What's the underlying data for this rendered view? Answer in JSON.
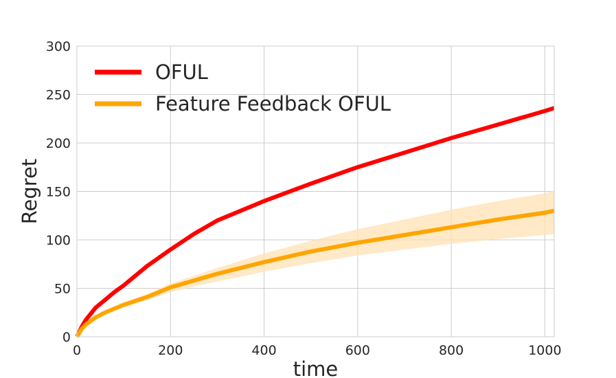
{
  "chart_data": {
    "type": "line",
    "xlabel": "time",
    "ylabel": "Regret",
    "xlim": [
      0,
      1020
    ],
    "ylim": [
      0,
      300
    ],
    "xticks": [
      0,
      200,
      400,
      600,
      800,
      1000
    ],
    "yticks": [
      0,
      50,
      100,
      150,
      200,
      250,
      300
    ],
    "grid": true,
    "legend_position": "top-left",
    "x": [
      0,
      10,
      20,
      40,
      60,
      80,
      100,
      150,
      200,
      250,
      300,
      400,
      500,
      600,
      700,
      800,
      900,
      1000,
      1020
    ],
    "series": [
      {
        "name": "OFUL",
        "color": "#ff0000",
        "band_color": "#f4a6a6",
        "values": [
          0,
          10,
          18,
          30,
          38,
          46,
          53,
          73,
          90,
          106,
          120,
          140,
          158,
          175,
          190,
          205,
          219,
          233,
          236
        ],
        "lower": [
          0,
          9,
          17,
          29,
          37,
          45,
          52,
          72,
          89,
          105,
          119,
          139,
          157,
          174,
          189,
          204,
          218,
          231,
          234
        ],
        "upper": [
          0,
          11,
          19,
          31,
          39,
          47,
          54,
          74,
          91,
          107,
          121,
          141,
          159,
          176,
          191,
          206,
          220,
          235,
          238
        ]
      },
      {
        "name": "Feature Feedback OFUL",
        "color": "#ffa500",
        "band_color": "#ffe2b3",
        "values": [
          0,
          8,
          13,
          20,
          25,
          29,
          33,
          41,
          51,
          58,
          65,
          77,
          88,
          97,
          105,
          113,
          121,
          128,
          130
        ],
        "lower": [
          0,
          7,
          12,
          18,
          23,
          27,
          30,
          38,
          46,
          52,
          57,
          67,
          76,
          84,
          90,
          96,
          101,
          105,
          106
        ],
        "upper": [
          0,
          9,
          15,
          22,
          27,
          31,
          35,
          44,
          55,
          63,
          71,
          86,
          99,
          111,
          121,
          131,
          140,
          148,
          151
        ]
      }
    ]
  }
}
